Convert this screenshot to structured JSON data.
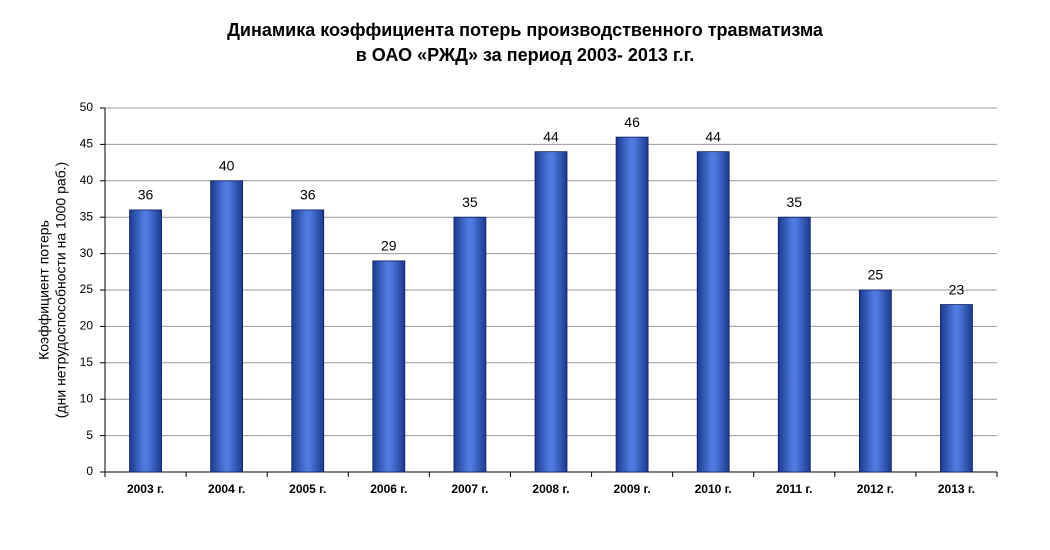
{
  "chart_data": {
    "type": "bar",
    "title": "Динамика коэффициента потерь производственного травматизма",
    "subtitle": "в ОАО «РЖД» за период   2003- 2013 г.г.",
    "ylabel": [
      "Коэффициент потерь",
      "(дни нетрудоспособности на 1000 раб.)"
    ],
    "categories": [
      "2003 г.",
      "2004 г.",
      "2005 г.",
      "2006 г.",
      "2007 г.",
      "2008 г.",
      "2009 г.",
      "2010 г.",
      "2011 г.",
      "2012 г.",
      "2013 г."
    ],
    "values": [
      36,
      40,
      36,
      29,
      35,
      44,
      46,
      44,
      35,
      25,
      23
    ],
    "color": "#1c3a8f",
    "ylim": [
      0,
      50
    ],
    "yticks": [
      0,
      5,
      10,
      15,
      20,
      25,
      30,
      35,
      40,
      45,
      50
    ],
    "grid": true
  }
}
